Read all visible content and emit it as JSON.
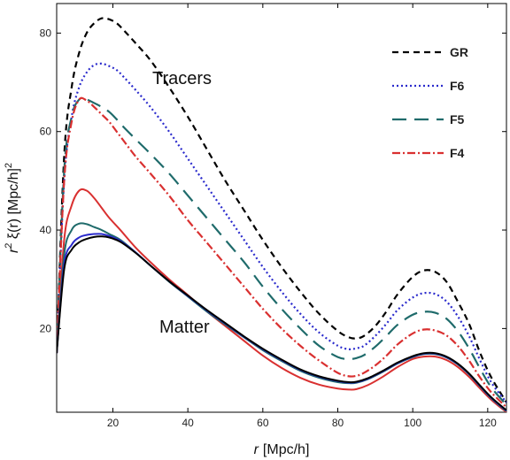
{
  "chart_data": {
    "type": "line",
    "xlabel_var": "r",
    "xlabel_unit": "[Mpc/h]",
    "ylabel_pre": "r",
    "ylabel_sup": "2",
    "ylabel_mid": " ξ(r) [Mpc/h]",
    "ylabel_sup2": "2",
    "xlim": [
      5,
      125
    ],
    "ylim": [
      3,
      86
    ],
    "xticks": [
      20,
      40,
      60,
      80,
      100,
      120
    ],
    "yticks": [
      20,
      40,
      60,
      80
    ],
    "grid": false,
    "legend_position": "top-right",
    "annotations": [
      "Tracers",
      "Matter"
    ],
    "series": [
      {
        "name": "GR",
        "group": "tracers",
        "color": "#000000",
        "dash": "7,5",
        "in_legend": true,
        "x": [
          5,
          7,
          9,
          11,
          13,
          15,
          17,
          19,
          21,
          23,
          26,
          30,
          35,
          40,
          45,
          50,
          55,
          60,
          65,
          70,
          75,
          80,
          83,
          85,
          87,
          90,
          93,
          96,
          100,
          103,
          106,
          109,
          112,
          115,
          118,
          121,
          125
        ],
        "y": [
          15,
          55,
          69,
          76,
          80,
          82,
          83,
          82.8,
          82,
          80.5,
          78,
          74.5,
          69,
          63,
          56.5,
          50,
          44,
          38,
          32.5,
          27.5,
          23,
          19.5,
          18.2,
          18,
          18.5,
          20.5,
          23.5,
          27,
          30.5,
          31.8,
          31.5,
          29.5,
          25.5,
          21,
          15,
          10,
          5
        ]
      },
      {
        "name": "F6",
        "group": "tracers",
        "color": "#2b2bcc",
        "dash": "2,3",
        "in_legend": true,
        "x": [
          5,
          7,
          9,
          11,
          13,
          15,
          17,
          19,
          21,
          23,
          26,
          30,
          35,
          40,
          45,
          50,
          55,
          60,
          65,
          70,
          75,
          80,
          83,
          85,
          87,
          90,
          93,
          96,
          100,
          103,
          106,
          109,
          112,
          115,
          118,
          121,
          125
        ],
        "y": [
          15,
          50,
          63,
          69,
          72,
          73.5,
          73.8,
          73.3,
          72.5,
          71,
          68.5,
          65,
          60,
          54.5,
          49,
          43.5,
          38,
          32.5,
          27.5,
          23,
          19.2,
          16.5,
          15.8,
          16,
          16.5,
          18.5,
          21,
          23.8,
          26.3,
          27.2,
          27,
          25.5,
          22.5,
          18.5,
          13.5,
          9,
          5
        ]
      },
      {
        "name": "F5",
        "group": "tracers",
        "color": "#1f6b6b",
        "dash": "16,9",
        "in_legend": true,
        "x": [
          5,
          7,
          9,
          11,
          13,
          15,
          17,
          19,
          21,
          23,
          26,
          30,
          35,
          40,
          45,
          50,
          55,
          60,
          65,
          70,
          75,
          80,
          83,
          85,
          87,
          90,
          93,
          96,
          100,
          103,
          106,
          109,
          112,
          115,
          118,
          121,
          125
        ],
        "y": [
          15,
          52,
          63,
          66.5,
          66.5,
          65.8,
          65,
          64,
          62.5,
          60.8,
          58.5,
          55.5,
          51.5,
          47,
          42.5,
          38,
          33.5,
          28.5,
          24,
          20,
          16.5,
          14.2,
          13.8,
          14,
          14.6,
          16.3,
          18.5,
          20.8,
          22.8,
          23.4,
          23.2,
          22,
          19.5,
          16,
          11.8,
          8,
          4.5
        ]
      },
      {
        "name": "F4",
        "group": "tracers",
        "color": "#d93030",
        "dash": "9,3,2,3",
        "in_legend": true,
        "x": [
          5,
          7,
          9,
          11,
          13,
          15,
          17,
          19,
          21,
          23,
          26,
          30,
          35,
          40,
          45,
          50,
          55,
          60,
          65,
          70,
          75,
          80,
          83,
          85,
          87,
          90,
          93,
          96,
          100,
          103,
          106,
          109,
          112,
          115,
          118,
          121,
          125
        ],
        "y": [
          15,
          50,
          62,
          66.5,
          66.3,
          65,
          63.5,
          62,
          60,
          58,
          55,
          51.5,
          47,
          42,
          37.5,
          33,
          28.5,
          24,
          20,
          16.5,
          13.5,
          11,
          10.3,
          10.4,
          11,
          12.5,
          14.5,
          16.8,
          19,
          19.8,
          19.6,
          18.6,
          16.5,
          13.5,
          10,
          7,
          4
        ]
      },
      {
        "name": "F4",
        "group": "matter",
        "color": "#d93030",
        "dash": "",
        "in_legend": false,
        "x": [
          5,
          7,
          9,
          11,
          13,
          15,
          17,
          19,
          22,
          26,
          30,
          35,
          40,
          45,
          50,
          55,
          60,
          65,
          70,
          75,
          80,
          83,
          85,
          88,
          92,
          96,
          100,
          103,
          106,
          109,
          112,
          115,
          118,
          121,
          125
        ],
        "y": [
          15,
          38,
          45,
          48,
          48,
          46.5,
          44.5,
          42.5,
          40,
          36.5,
          33.5,
          30,
          26.8,
          23.5,
          20.5,
          17.5,
          14.5,
          12,
          10,
          8.6,
          7.8,
          7.6,
          7.7,
          8.5,
          10.2,
          12.2,
          13.8,
          14.3,
          14.3,
          13.6,
          12.2,
          10.2,
          7.8,
          5.5,
          3
        ]
      },
      {
        "name": "F5",
        "group": "matter",
        "color": "#1f6b6b",
        "dash": "",
        "in_legend": false,
        "x": [
          5,
          7,
          9,
          11,
          13,
          15,
          17,
          19,
          22,
          26,
          30,
          35,
          40,
          45,
          50,
          55,
          60,
          65,
          70,
          75,
          80,
          83,
          85,
          88,
          92,
          96,
          100,
          103,
          106,
          109,
          112,
          115,
          118,
          121,
          125
        ],
        "y": [
          15,
          35,
          40,
          41.3,
          41.2,
          40.6,
          40,
          39.2,
          38,
          35.5,
          32.8,
          29.5,
          26.5,
          23.5,
          20.8,
          18.2,
          15.6,
          13.4,
          11.4,
          10,
          9.1,
          8.9,
          9,
          9.7,
          11.2,
          12.9,
          14.2,
          14.8,
          14.8,
          14.1,
          12.7,
          10.7,
          8.2,
          5.8,
          3.2
        ]
      },
      {
        "name": "F6",
        "group": "matter",
        "color": "#2b2bcc",
        "dash": "",
        "in_legend": false,
        "x": [
          5,
          7,
          9,
          11,
          13,
          15,
          17,
          19,
          22,
          26,
          30,
          35,
          40,
          45,
          50,
          55,
          60,
          65,
          70,
          75,
          80,
          83,
          85,
          88,
          92,
          96,
          100,
          103,
          106,
          109,
          112,
          115,
          118,
          121,
          125
        ],
        "y": [
          15,
          33,
          37,
          38.5,
          39,
          39.2,
          39.2,
          38.8,
          37.8,
          35.5,
          32.8,
          29.6,
          26.6,
          23.7,
          21,
          18.3,
          15.8,
          13.6,
          11.6,
          10.2,
          9.3,
          9,
          9.1,
          9.8,
          11.3,
          13,
          14.3,
          14.9,
          14.9,
          14.2,
          12.8,
          10.8,
          8.3,
          5.9,
          3.3
        ]
      },
      {
        "name": "GR",
        "group": "matter",
        "color": "#000000",
        "dash": "",
        "in_legend": false,
        "x": [
          5,
          7,
          9,
          11,
          13,
          15,
          17,
          19,
          22,
          26,
          30,
          35,
          40,
          45,
          50,
          55,
          60,
          65,
          70,
          75,
          80,
          83,
          85,
          88,
          92,
          96,
          100,
          103,
          106,
          109,
          112,
          115,
          118,
          121,
          125
        ],
        "y": [
          15,
          32,
          36,
          37.5,
          38.2,
          38.6,
          38.7,
          38.5,
          37.6,
          35.4,
          32.8,
          29.6,
          26.7,
          23.8,
          21.1,
          18.4,
          15.9,
          13.7,
          11.7,
          10.3,
          9.4,
          9.1,
          9.2,
          9.9,
          11.4,
          13.1,
          14.4,
          15,
          15,
          14.3,
          12.9,
          10.9,
          8.4,
          6,
          3.4
        ]
      }
    ]
  }
}
